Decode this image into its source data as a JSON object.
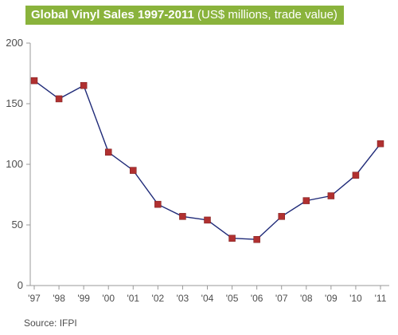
{
  "chart_data": {
    "type": "line",
    "title_bold": "Global Vinyl Sales 1997-2011",
    "title_rest": " (US$ millions, trade value)",
    "source": "Source: IFPI",
    "categories": [
      "'97",
      "'98",
      "'99",
      "'00",
      "'01",
      "'02",
      "'03",
      "'04",
      "'05",
      "'06",
      "'07",
      "'08",
      "'09",
      "'10",
      "'11"
    ],
    "series": [
      {
        "values": [
          169,
          154,
          165,
          110,
          95,
          67,
          57,
          54,
          39,
          38,
          57,
          70,
          74,
          91,
          117
        ]
      }
    ],
    "yticks": [
      0,
      50,
      100,
      150,
      200
    ],
    "ylim": [
      0,
      200
    ],
    "grid": false,
    "line_color": "#1f2a78",
    "marker_color": "#b03030"
  }
}
